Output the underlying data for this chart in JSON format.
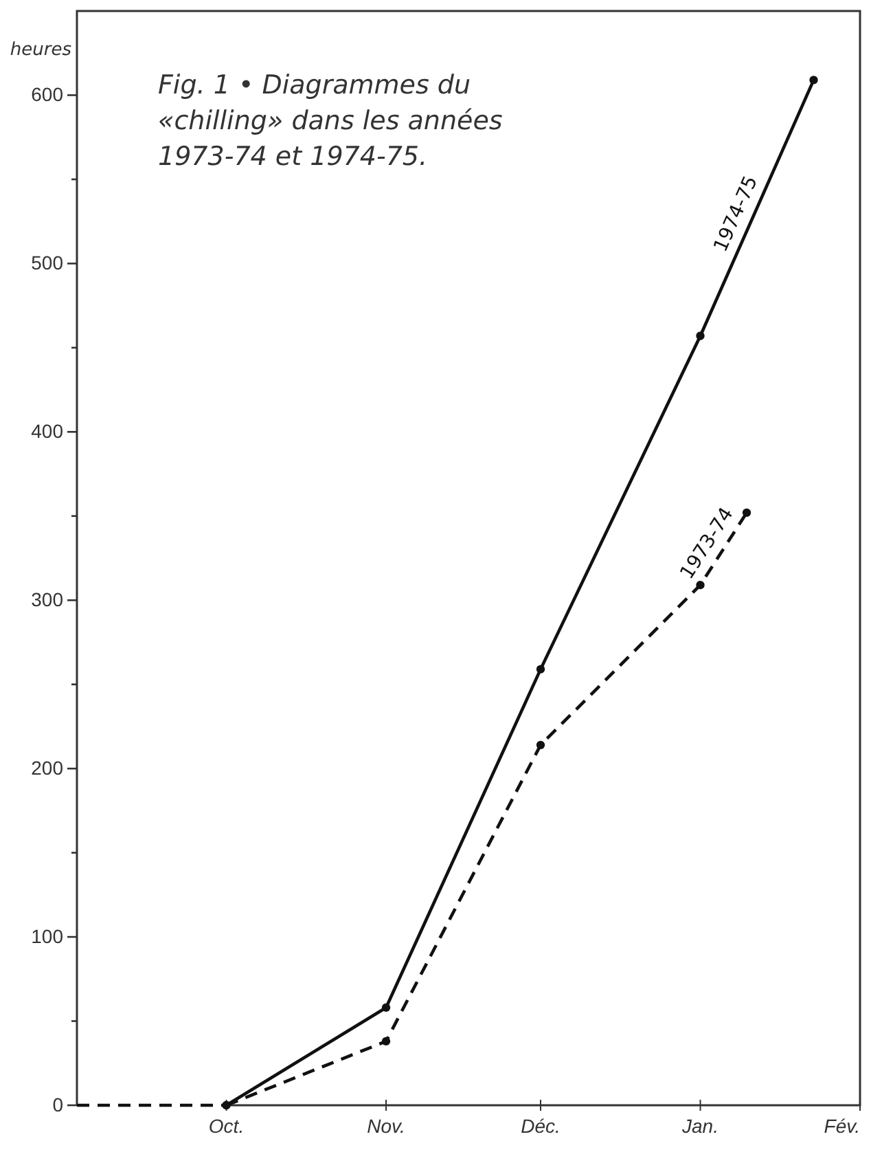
{
  "chart_data": {
    "type": "line",
    "title": "Fig. 1 • Diagrammes du «chilling» dans les années 1973-74 et 1974-75.",
    "ylabel": "heures",
    "xlim": [
      "1974-09-02",
      "1975-02-01"
    ],
    "xticks": [
      {
        "value": "1974-10-01",
        "label": "Oct."
      },
      {
        "value": "1974-11-01",
        "label": "Nov."
      },
      {
        "value": "1974-12-01",
        "label": "Déc."
      },
      {
        "value": "1975-01-01",
        "label": "Jan."
      },
      {
        "value": "1975-02-01",
        "label": "Fév."
      }
    ],
    "ylim": [
      0,
      650
    ],
    "yticks": [
      0,
      {
        "value": 50,
        "label": null
      },
      100,
      {
        "value": 150,
        "label": null
      },
      200,
      {
        "value": 250,
        "label": null
      },
      300,
      {
        "value": 350,
        "label": null
      },
      400,
      {
        "value": 450,
        "label": null
      },
      500,
      {
        "value": 550,
        "label": null
      },
      600
    ],
    "grid": false,
    "marker": "circle",
    "series": [
      {
        "name": "1974-75",
        "color": "#111111",
        "line_style": "solid",
        "x": [
          "1974-10-01",
          "1974-11-01",
          "1974-12-01",
          "1975-01-01",
          "1975-01-23"
        ],
        "values": [
          0,
          58,
          259,
          457,
          609
        ]
      },
      {
        "name": "1973-74",
        "color": "#111111",
        "line_style": "dashed",
        "x": [
          "1974-10-01",
          "1974-11-01",
          "1974-12-01",
          "1975-01-01",
          "1975-01-10"
        ],
        "values": [
          0,
          38,
          214,
          309,
          352
        ]
      },
      {
        "color": "#111111",
        "line_style": "dashed",
        "marker": "none",
        "x": [
          "1974-09-02",
          "1974-10-01"
        ],
        "values": [
          0,
          0
        ]
      }
    ]
  }
}
